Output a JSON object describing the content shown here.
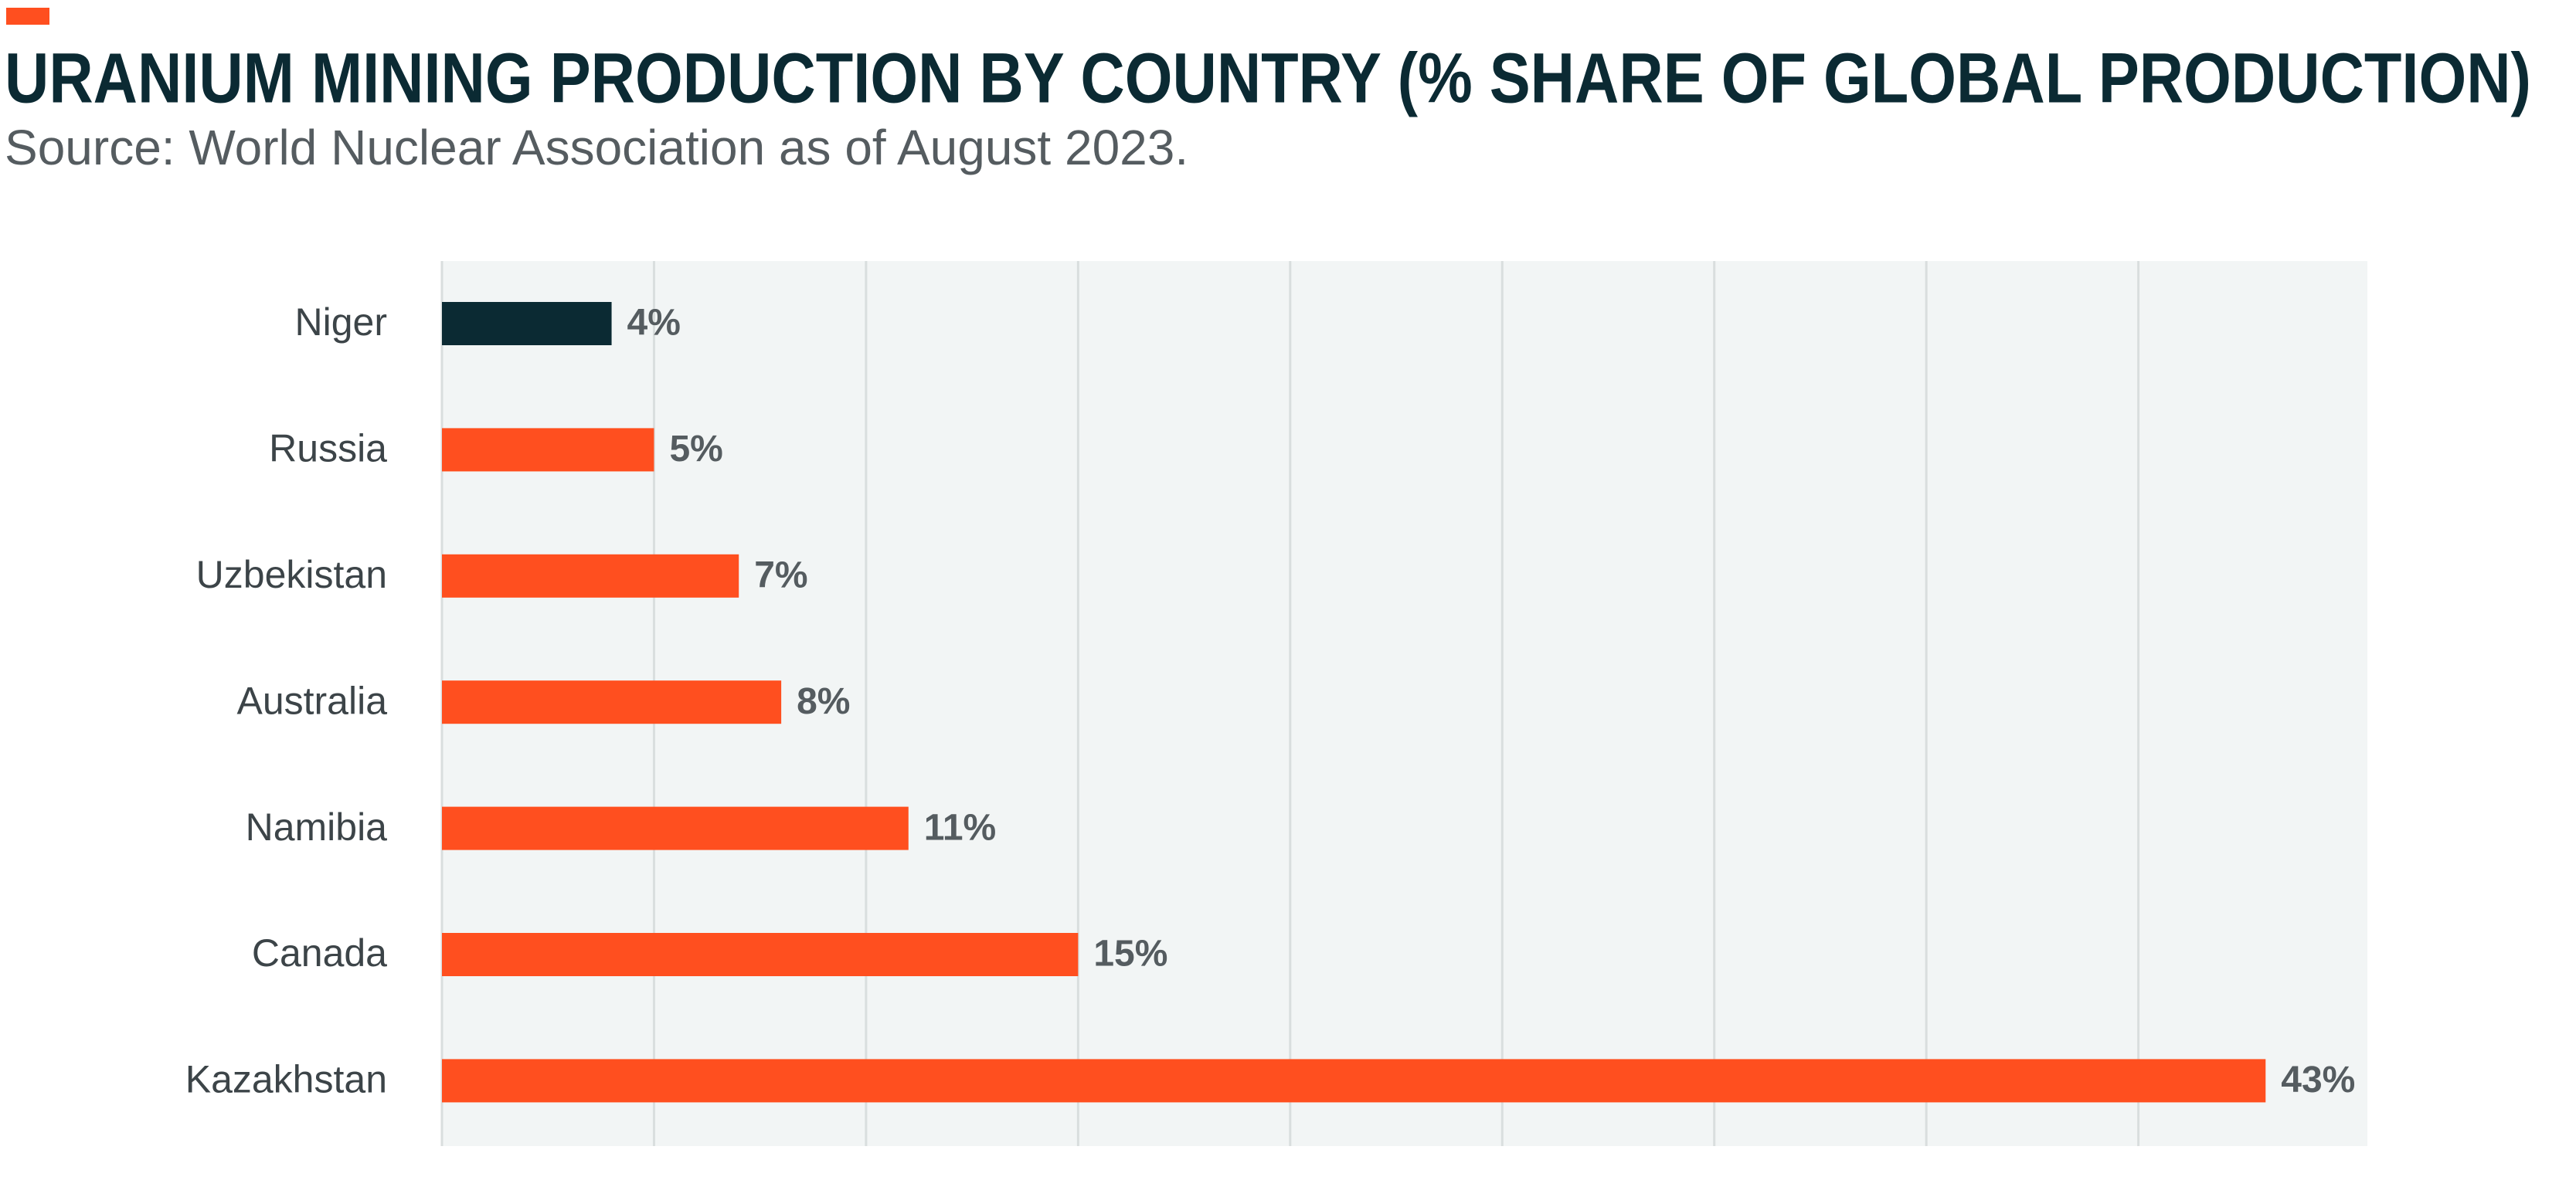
{
  "chart_data": {
    "type": "bar",
    "orientation": "horizontal",
    "title": "URANIUM MINING PRODUCTION BY COUNTRY (% SHARE OF GLOBAL PRODUCTION)",
    "subtitle": "Source: World Nuclear Association as of August 2023.",
    "categories": [
      "Niger",
      "Russia",
      "Uzbekistan",
      "Australia",
      "Namibia",
      "Canada",
      "Kazakhstan"
    ],
    "values": [
      4,
      5,
      7,
      8,
      11,
      15,
      43
    ],
    "value_labels": [
      "4%",
      "5%",
      "7%",
      "8%",
      "11%",
      "15%",
      "43%"
    ],
    "colors": [
      "#0b2a33",
      "#ff4f1f",
      "#ff4f1f",
      "#ff4f1f",
      "#ff4f1f",
      "#ff4f1f",
      "#ff4f1f"
    ],
    "xlim": [
      0,
      45.4
    ],
    "xticks": [
      0,
      5,
      10,
      15,
      20,
      25,
      30,
      35,
      40
    ],
    "grid": true
  }
}
